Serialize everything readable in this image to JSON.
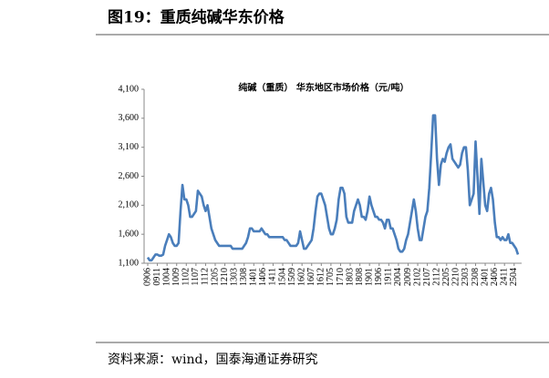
{
  "chart_data": {
    "type": "line",
    "title": "图19：重质纯碱华东价格",
    "subtitle": "纯碱（重质） 华东地区市场价格（元/吨）",
    "source": "资料来源：wind，国泰海通证券研究",
    "categories": [
      "0906",
      null,
      null,
      null,
      null,
      "0911",
      null,
      null,
      null,
      null,
      "1004",
      null,
      null,
      null,
      null,
      "1009",
      null,
      null,
      null,
      null,
      "1102",
      null,
      null,
      null,
      null,
      "1107",
      null,
      null,
      null,
      null,
      "1112",
      null,
      null,
      null,
      null,
      "1205",
      null,
      null,
      null,
      null,
      "1210",
      null,
      null,
      null,
      null,
      "1303",
      null,
      null,
      null,
      null,
      "1308",
      null,
      null,
      null,
      null,
      "1401",
      null,
      null,
      null,
      null,
      "1406",
      null,
      null,
      null,
      null,
      "1411",
      null,
      null,
      null,
      null,
      "1504",
      null,
      null,
      null,
      null,
      "1509",
      null,
      null,
      null,
      null,
      "1602",
      null,
      null,
      null,
      null,
      "1607",
      null,
      null,
      null,
      null,
      "1612",
      null,
      null,
      null,
      null,
      "1705",
      null,
      null,
      null,
      null,
      "1710",
      null,
      null,
      null,
      null,
      "1803",
      null,
      null,
      null,
      null,
      "1808",
      null,
      null,
      null,
      null,
      "1901",
      null,
      null,
      null,
      null,
      "1906",
      null,
      null,
      null,
      null,
      "1911",
      null,
      null,
      null,
      null,
      "2004",
      null,
      null,
      null,
      null,
      "2009",
      null,
      null,
      null,
      null,
      "2102",
      null,
      null,
      null,
      null,
      "2107",
      null,
      null,
      null,
      null,
      "2112",
      null,
      null,
      null,
      null,
      "2205",
      null,
      null,
      null,
      null,
      "2210",
      null,
      null,
      null,
      null,
      "2303",
      null,
      null,
      null,
      null,
      "2308",
      null,
      null,
      null,
      null,
      "2401",
      null,
      null,
      null,
      null,
      "2406",
      null,
      null,
      null,
      null,
      "2411",
      null,
      null,
      null,
      null,
      "2504",
      null,
      null
    ],
    "series": [
      {
        "color": "#4a7ebb",
        "values": [
          1200,
          1150,
          1150,
          1200,
          1250,
          1250,
          1230,
          1230,
          1250,
          1400,
          1500,
          1600,
          1550,
          1450,
          1400,
          1400,
          1450,
          2000,
          2450,
          2200,
          2200,
          2100,
          1900,
          1900,
          1950,
          2000,
          2350,
          2300,
          2250,
          2100,
          2000,
          2100,
          1900,
          1700,
          1600,
          1500,
          1450,
          1400,
          1400,
          1400,
          1400,
          1400,
          1400,
          1400,
          1350,
          1350,
          1350,
          1350,
          1350,
          1350,
          1400,
          1450,
          1550,
          1700,
          1700,
          1650,
          1650,
          1650,
          1650,
          1700,
          1650,
          1600,
          1600,
          1550,
          1550,
          1550,
          1550,
          1550,
          1550,
          1550,
          1550,
          1500,
          1500,
          1450,
          1400,
          1400,
          1400,
          1400,
          1450,
          1650,
          1500,
          1350,
          1350,
          1400,
          1450,
          1500,
          1700,
          2000,
          2250,
          2300,
          2300,
          2200,
          2100,
          1900,
          1700,
          1600,
          1600,
          1700,
          1850,
          2200,
          2400,
          2400,
          2300,
          1900,
          1800,
          1800,
          1800,
          2000,
          2100,
          2200,
          2100,
          1900,
          1900,
          1850,
          2000,
          2250,
          2100,
          2000,
          1900,
          1900,
          1850,
          1850,
          1800,
          1700,
          1850,
          1850,
          1700,
          1700,
          1600,
          1500,
          1350,
          1300,
          1300,
          1350,
          1500,
          1600,
          1800,
          2000,
          2200,
          2000,
          1700,
          1500,
          1500,
          1700,
          1900,
          2000,
          2400,
          3000,
          3650,
          3650,
          2900,
          2450,
          2800,
          2900,
          2850,
          3000,
          3100,
          3150,
          2900,
          2850,
          2800,
          2750,
          2800,
          3000,
          3100,
          3100,
          2700,
          2100,
          2200,
          2300,
          3200,
          2600,
          1950,
          2900,
          2500,
          2100,
          2000,
          2300,
          2400,
          2200,
          1800,
          1550,
          1550,
          1500,
          1550,
          1500,
          1500,
          1600,
          1450,
          1450,
          1400,
          1350,
          1250
        ]
      }
    ],
    "ylim": [
      1100,
      4100
    ],
    "yticks": [
      {
        "value": 1100,
        "label": "1,100"
      },
      {
        "value": 1600,
        "label": "1,600"
      },
      {
        "value": 2100,
        "label": "2,100"
      },
      {
        "value": 2600,
        "label": "2,600"
      },
      {
        "value": 3100,
        "label": "3,100"
      },
      {
        "value": 3600,
        "label": "3,600"
      },
      {
        "value": 4100,
        "label": "4,100"
      }
    ],
    "grid": false
  }
}
